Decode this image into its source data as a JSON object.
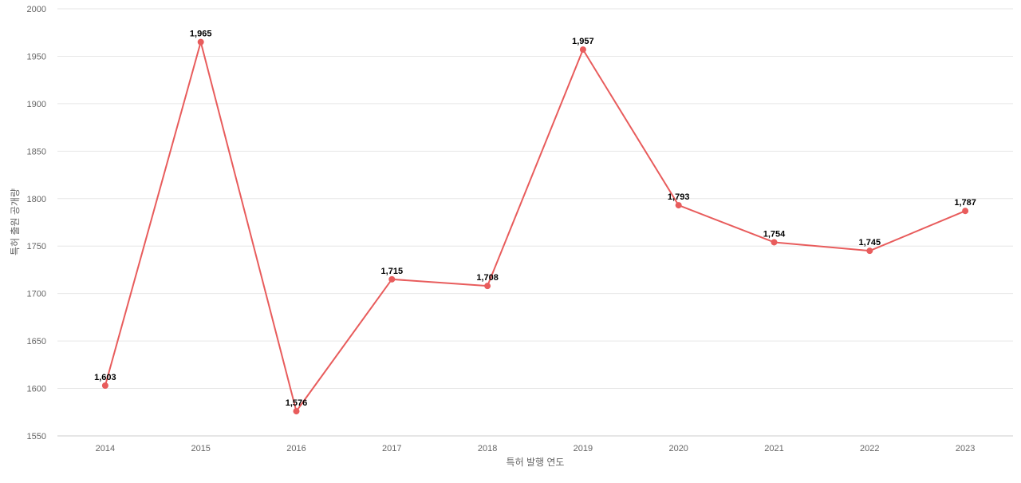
{
  "chart_data": {
    "type": "line",
    "title": "",
    "xlabel": "특허 발행 연도",
    "ylabel": "특허 출원 공개량",
    "categories": [
      "2014",
      "2015",
      "2016",
      "2017",
      "2018",
      "2019",
      "2020",
      "2021",
      "2022",
      "2023"
    ],
    "series": [
      {
        "values": [
          1603,
          1965,
          1576,
          1715,
          1708,
          1957,
          1793,
          1754,
          1745,
          1787
        ],
        "value_labels": [
          "1,603",
          "1,965",
          "1,576",
          "1,715",
          "1,708",
          "1,957",
          "1,793",
          "1,754",
          "1,745",
          "1,787"
        ],
        "color": "#e85c5c"
      }
    ],
    "ylim": [
      1550,
      2000
    ],
    "yticks": [
      "1550",
      "1600",
      "1650",
      "1700",
      "1750",
      "1800",
      "1850",
      "1900",
      "1950",
      "2000"
    ],
    "grid": true,
    "legend": "none"
  }
}
